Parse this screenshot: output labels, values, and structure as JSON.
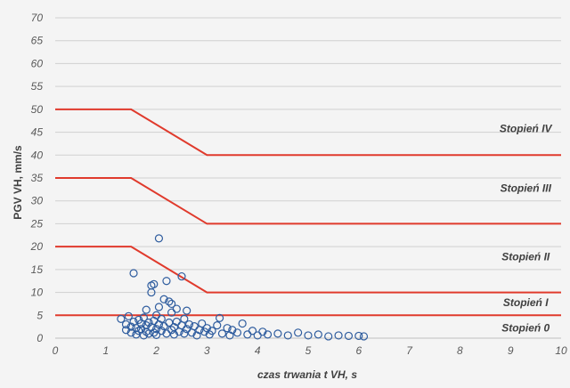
{
  "chart_data": {
    "type": "scatter",
    "xlabel": "czas trwania t VH, s",
    "ylabel": "PGV VH, mm/s",
    "xlim": [
      0,
      10
    ],
    "ylim": [
      0,
      70
    ],
    "x_ticks": [
      0,
      1,
      2,
      3,
      4,
      5,
      6,
      7,
      8,
      9,
      10
    ],
    "y_ticks": [
      0,
      5,
      10,
      15,
      20,
      25,
      30,
      35,
      40,
      45,
      50,
      55,
      60,
      65,
      70
    ],
    "grid": "horizontal",
    "colors": {
      "threshold": "#e03a2c",
      "points": "#2e5c9e",
      "grid": "#d0d0d0"
    },
    "thresholds": [
      {
        "name": "Stopień I",
        "points": [
          [
            0,
            5
          ],
          [
            10,
            5
          ]
        ]
      },
      {
        "name": "Stopień II",
        "points": [
          [
            0,
            20
          ],
          [
            1.5,
            20
          ],
          [
            3,
            10
          ],
          [
            10,
            10
          ]
        ]
      },
      {
        "name": "Stopień III",
        "points": [
          [
            0,
            35
          ],
          [
            1.5,
            35
          ],
          [
            3,
            25
          ],
          [
            10,
            25
          ]
        ]
      },
      {
        "name": "Stopień IV",
        "points": [
          [
            0,
            50
          ],
          [
            1.5,
            50
          ],
          [
            3,
            40
          ],
          [
            10,
            40
          ]
        ]
      }
    ],
    "zone_labels": [
      {
        "text": "Stopień IV",
        "x": 9.3,
        "y": 45
      },
      {
        "text": "Stopień III",
        "x": 9.3,
        "y": 32
      },
      {
        "text": "Stopień II",
        "x": 9.3,
        "y": 17
      },
      {
        "text": "Stopień I",
        "x": 9.3,
        "y": 7
      },
      {
        "text": "Stopień 0",
        "x": 9.3,
        "y": 1.5
      }
    ],
    "points": [
      [
        1.3,
        4.2
      ],
      [
        1.4,
        3.0
      ],
      [
        1.4,
        1.8
      ],
      [
        1.45,
        4.8
      ],
      [
        1.5,
        2.5
      ],
      [
        1.5,
        1.2
      ],
      [
        1.55,
        3.6
      ],
      [
        1.55,
        14.2
      ],
      [
        1.6,
        2.2
      ],
      [
        1.6,
        0.8
      ],
      [
        1.65,
        4.0
      ],
      [
        1.65,
        1.6
      ],
      [
        1.7,
        3.2
      ],
      [
        1.7,
        2.0
      ],
      [
        1.75,
        0.6
      ],
      [
        1.75,
        4.5
      ],
      [
        1.8,
        2.8
      ],
      [
        1.8,
        1.4
      ],
      [
        1.8,
        6.2
      ],
      [
        1.85,
        3.4
      ],
      [
        1.85,
        1.0
      ],
      [
        1.9,
        11.5
      ],
      [
        1.9,
        10.0
      ],
      [
        1.9,
        2.4
      ],
      [
        1.95,
        11.8
      ],
      [
        1.95,
        3.8
      ],
      [
        1.95,
        1.2
      ],
      [
        2.0,
        2.0
      ],
      [
        2.0,
        5.0
      ],
      [
        2.0,
        0.7
      ],
      [
        2.05,
        6.8
      ],
      [
        2.05,
        3.0
      ],
      [
        2.05,
        21.8
      ],
      [
        2.1,
        1.6
      ],
      [
        2.1,
        4.2
      ],
      [
        2.15,
        8.5
      ],
      [
        2.15,
        2.6
      ],
      [
        2.2,
        1.0
      ],
      [
        2.2,
        12.5
      ],
      [
        2.25,
        3.4
      ],
      [
        2.25,
        8.0
      ],
      [
        2.3,
        1.8
      ],
      [
        2.3,
        5.6
      ],
      [
        2.3,
        7.5
      ],
      [
        2.35,
        2.4
      ],
      [
        2.35,
        0.8
      ],
      [
        2.4,
        3.6
      ],
      [
        2.4,
        6.4
      ],
      [
        2.45,
        1.4
      ],
      [
        2.5,
        13.5
      ],
      [
        2.5,
        2.8
      ],
      [
        2.55,
        1.0
      ],
      [
        2.55,
        4.2
      ],
      [
        2.6,
        6.0
      ],
      [
        2.6,
        2.0
      ],
      [
        2.65,
        3.0
      ],
      [
        2.7,
        1.2
      ],
      [
        2.75,
        2.6
      ],
      [
        2.8,
        0.6
      ],
      [
        2.85,
        1.8
      ],
      [
        2.9,
        3.2
      ],
      [
        2.95,
        1.4
      ],
      [
        3.0,
        2.2
      ],
      [
        3.05,
        0.8
      ],
      [
        3.1,
        1.6
      ],
      [
        3.2,
        2.8
      ],
      [
        3.25,
        4.4
      ],
      [
        3.3,
        1.0
      ],
      [
        3.4,
        2.2
      ],
      [
        3.45,
        0.6
      ],
      [
        3.5,
        1.8
      ],
      [
        3.6,
        1.2
      ],
      [
        3.7,
        3.2
      ],
      [
        3.8,
        0.8
      ],
      [
        3.9,
        1.6
      ],
      [
        4.0,
        0.6
      ],
      [
        4.1,
        1.4
      ],
      [
        4.2,
        0.8
      ],
      [
        4.4,
        1.0
      ],
      [
        4.6,
        0.6
      ],
      [
        4.8,
        1.2
      ],
      [
        5.0,
        0.6
      ],
      [
        5.2,
        0.8
      ],
      [
        5.4,
        0.4
      ],
      [
        5.6,
        0.6
      ],
      [
        5.8,
        0.5
      ],
      [
        6.0,
        0.5
      ],
      [
        6.1,
        0.4
      ]
    ]
  }
}
